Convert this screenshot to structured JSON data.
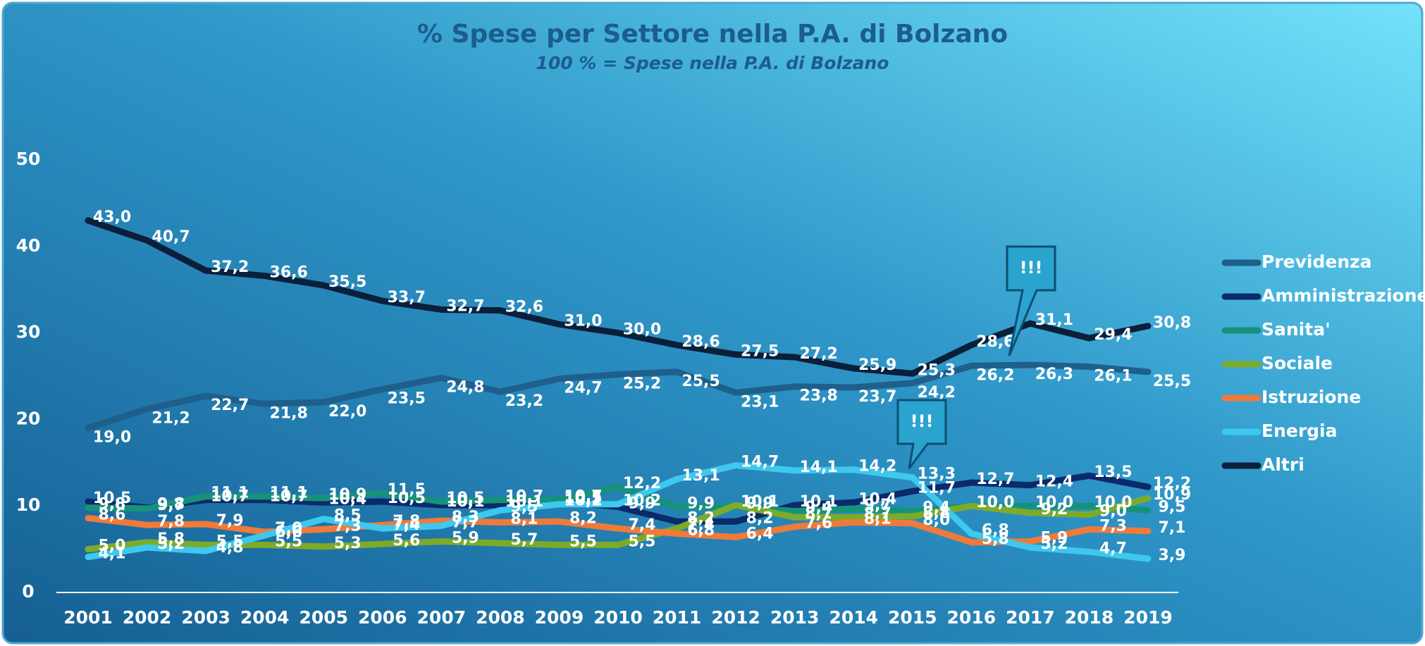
{
  "chart_data": {
    "type": "line",
    "title": "% Spese per Settore nella P.A. di Bolzano",
    "subtitle": "100 % = Spese nella P.A. di Bolzano",
    "annotations": [
      "!!!",
      "!!!"
    ],
    "categories": [
      "2001",
      "2002",
      "2003",
      "2004",
      "2005",
      "2006",
      "2007",
      "2008",
      "2009",
      "2010",
      "2011",
      "2012",
      "2013",
      "2014",
      "2015",
      "2016",
      "2017",
      "2018",
      "2019"
    ],
    "ylim": [
      0,
      50
    ],
    "yticks": [
      0,
      10,
      20,
      30,
      40,
      50
    ],
    "legend": "right",
    "series": [
      {
        "name": "Previdenza",
        "color": "#1f5f8b",
        "values": [
          19.0,
          21.2,
          22.7,
          21.8,
          22.0,
          23.5,
          24.8,
          23.2,
          24.7,
          25.2,
          25.5,
          23.1,
          23.8,
          23.7,
          24.2,
          26.2,
          26.3,
          26.1,
          25.5
        ],
        "value_labels": [
          "19,0",
          "21,2",
          "22,7",
          "21,8",
          "22,0",
          "23,5",
          "24,8",
          "23,2",
          "24,7",
          "25,2",
          "25,5",
          "23,1",
          "23,8",
          "23,7",
          "24,2",
          "26,2",
          "26,3",
          "26,1",
          "25,5"
        ]
      },
      {
        "name": "Amministrazione",
        "color": "#0b2a6b",
        "values": [
          10.5,
          9.8,
          10.7,
          10.7,
          10.4,
          10.5,
          10.1,
          10.1,
          10.5,
          9.9,
          8.2,
          8.2,
          10.1,
          10.4,
          11.7,
          12.7,
          12.4,
          13.5,
          12.2
        ],
        "value_labels": [
          "10,5",
          "9,8",
          "10,7",
          "10,7",
          "10,4",
          "10,5",
          "10,1",
          "10,1",
          "10,5",
          "9,9",
          "8,2",
          "8,2",
          "10,1",
          "10,4",
          "11,7",
          "12,7",
          "12,4",
          "13,5",
          "12,2"
        ]
      },
      {
        "name": "Sanita'",
        "color": "#16927a",
        "values": [
          9.8,
          9.7,
          11.1,
          11.1,
          10.9,
          11.5,
          10.5,
          10.7,
          10.7,
          12.2,
          9.9,
          9.9,
          9.4,
          9.7,
          9.4,
          10.0,
          10.0,
          10.0,
          9.5
        ],
        "value_labels": [
          "9,8",
          "9,7",
          "11,1",
          "11,1",
          "10,9",
          "11,5",
          "10,5",
          "10,7",
          "10,7",
          "12,2",
          "9,9",
          "9,9",
          "9,4",
          "9,7",
          "9,4",
          "10,0",
          "10,0",
          "10,0",
          "9,5"
        ]
      },
      {
        "name": "Sociale",
        "color": "#7cab2a",
        "values": [
          5.0,
          5.8,
          5.5,
          5.5,
          5.3,
          5.6,
          5.9,
          5.7,
          5.5,
          5.5,
          7.4,
          10.1,
          8.7,
          8.7,
          8.8,
          10.0,
          9.2,
          9.0,
          10.9
        ],
        "value_labels": [
          "5,0",
          "5,8",
          "5,5",
          "5,5",
          "5,3",
          "5,6",
          "5,9",
          "5,7",
          "5,5",
          "5,5",
          "7,4",
          "10,1",
          "8,7",
          "8,7",
          "8,8",
          "10,0",
          "9,2",
          "9,0",
          "10,9"
        ]
      },
      {
        "name": "Istruzione",
        "color": "#f07a3a",
        "values": [
          8.6,
          7.8,
          7.9,
          7.0,
          7.3,
          7.8,
          8.3,
          8.1,
          8.2,
          7.4,
          6.8,
          6.4,
          7.6,
          8.1,
          8.0,
          5.8,
          5.9,
          7.3,
          7.1
        ],
        "value_labels": [
          "8,6",
          "7,8",
          "7,9",
          "7,0",
          "7,3",
          "7,8",
          "8,3",
          "8,1",
          "8,2",
          "7,4",
          "6,8",
          "6,4",
          "7,6",
          "8,1",
          "8,0",
          "5,8",
          "5,9",
          "7,3",
          "7,1"
        ]
      },
      {
        "name": "Energia",
        "color": "#3ec8ee",
        "values": [
          4.1,
          5.2,
          4.8,
          6.6,
          8.5,
          7.4,
          7.7,
          9.5,
          10.2,
          10.2,
          13.1,
          14.7,
          14.1,
          14.2,
          13.3,
          6.8,
          5.2,
          4.7,
          3.9
        ],
        "value_labels": [
          "4,1",
          "5,2",
          "4,8",
          "6,6",
          "8,5",
          "7,4",
          "7,7",
          "9,5",
          "10,2",
          "10,2",
          "13,1",
          "14,7",
          "14,1",
          "14,2",
          "13,3",
          "6,8",
          "5,2",
          "4,7",
          "3,9"
        ]
      },
      {
        "name": "Altri",
        "color": "#0a1f3a",
        "values": [
          43.0,
          40.7,
          37.2,
          36.6,
          35.5,
          33.7,
          32.7,
          32.6,
          31.0,
          30.0,
          28.6,
          27.5,
          27.2,
          25.9,
          25.3,
          28.6,
          31.1,
          29.4,
          30.8
        ],
        "value_labels": [
          "43,0",
          "40,7",
          "37,2",
          "36,6",
          "35,5",
          "33,7",
          "32,7",
          "32,6",
          "31,0",
          "30,0",
          "28,6",
          "27,5",
          "27,2",
          "25,9",
          "25,3",
          "28,6",
          "31,1",
          "29,4",
          "30,8"
        ]
      }
    ]
  }
}
